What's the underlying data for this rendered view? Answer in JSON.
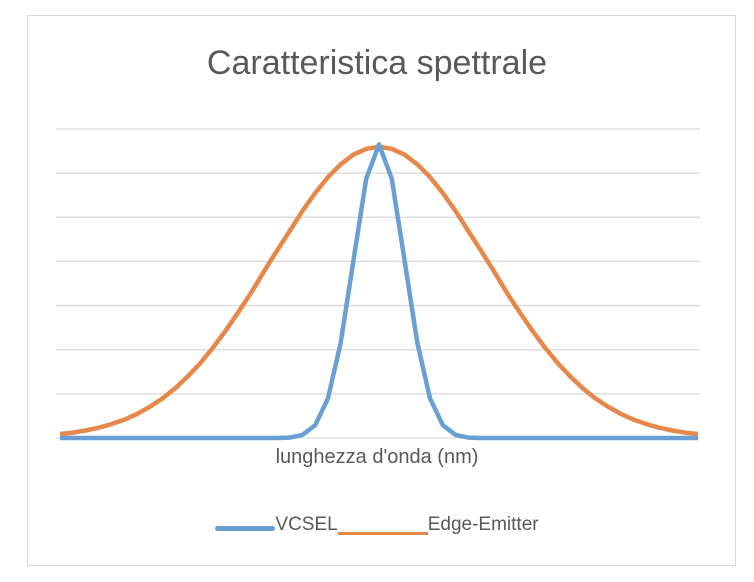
{
  "chart_data": {
    "type": "line",
    "title": "Caratteristica spettrale",
    "xlabel": "lunghezza d'onda (nm)",
    "ylabel": "",
    "ylim": [
      0,
      7
    ],
    "yticks": [
      0,
      1,
      2,
      3,
      4,
      5,
      6,
      7
    ],
    "grid": true,
    "legend_position": "bottom",
    "x_count": 51,
    "series": [
      {
        "name": "VCSEL",
        "color": "#6a9fd3",
        "values": [
          0,
          0,
          0,
          0,
          0,
          0,
          0,
          0,
          0,
          0,
          0,
          0,
          0,
          0,
          0,
          0,
          0,
          0,
          0.01,
          0.07,
          0.29,
          0.9,
          2.16,
          4.03,
          5.87,
          6.65,
          5.87,
          4.03,
          2.16,
          0.9,
          0.29,
          0.07,
          0.01,
          0,
          0,
          0,
          0,
          0,
          0,
          0,
          0,
          0,
          0,
          0,
          0,
          0,
          0,
          0,
          0,
          0,
          0
        ]
      },
      {
        "name": "Edge-Emitter",
        "color": "#e5884a",
        "values": [
          0.09,
          0.12,
          0.17,
          0.23,
          0.31,
          0.41,
          0.54,
          0.7,
          0.89,
          1.12,
          1.39,
          1.7,
          2.05,
          2.44,
          2.86,
          3.3,
          3.78,
          4.24,
          4.69,
          5.14,
          5.55,
          5.91,
          6.2,
          6.42,
          6.55,
          6.6,
          6.55,
          6.42,
          6.2,
          5.91,
          5.55,
          5.14,
          4.69,
          4.24,
          3.78,
          3.3,
          2.86,
          2.44,
          2.05,
          1.7,
          1.39,
          1.12,
          0.89,
          0.7,
          0.54,
          0.41,
          0.31,
          0.23,
          0.17,
          0.12,
          0.09
        ]
      }
    ]
  }
}
